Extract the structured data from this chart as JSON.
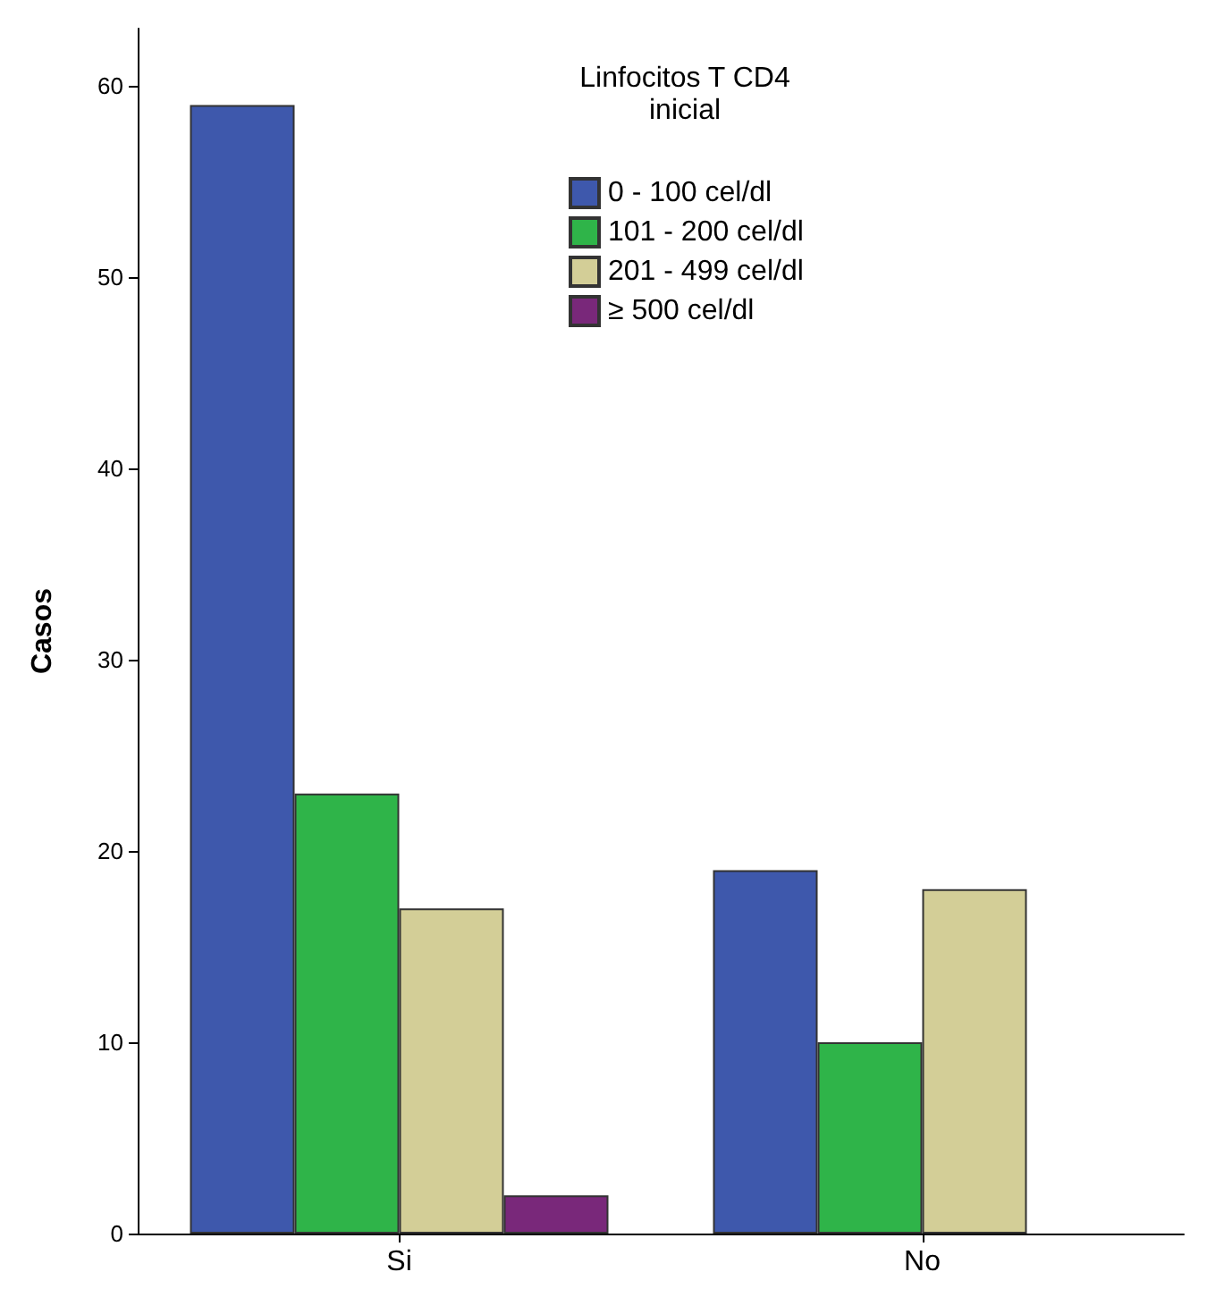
{
  "chart_data": {
    "type": "bar",
    "ylabel": "Casos",
    "legend_title": "Linfocitos T CD4\ninicial",
    "categories": [
      "Si",
      "No"
    ],
    "series": [
      {
        "name": "0 - 100 cel/dl",
        "color": "#3e58ac",
        "values": [
          59,
          19
        ]
      },
      {
        "name": "101 - 200 cel/dl",
        "color": "#2fb449",
        "values": [
          23,
          10
        ]
      },
      {
        "name": "201 - 499 cel/dl",
        "color": "#d3ce97",
        "values": [
          17,
          18
        ]
      },
      {
        "name": "≥ 500 cel/dl",
        "color": "#79287a",
        "values": [
          2,
          null
        ]
      }
    ],
    "ylim": [
      0,
      63
    ],
    "yticks": [
      0,
      10,
      20,
      30,
      40,
      50,
      60
    ],
    "grid": false,
    "legend": "top"
  }
}
